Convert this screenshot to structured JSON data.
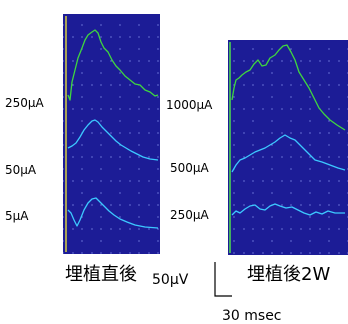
{
  "left_panel": {
    "title": "埋植直後",
    "labels": [
      "250μA",
      "50μA",
      "5μA"
    ]
  },
  "right_panel": {
    "title": "埋植後2W",
    "labels": [
      "1000μA",
      "500μA",
      "250μA"
    ]
  },
  "scale_bar": {
    "amplitude": "50μV",
    "time": "30 msec"
  }
}
